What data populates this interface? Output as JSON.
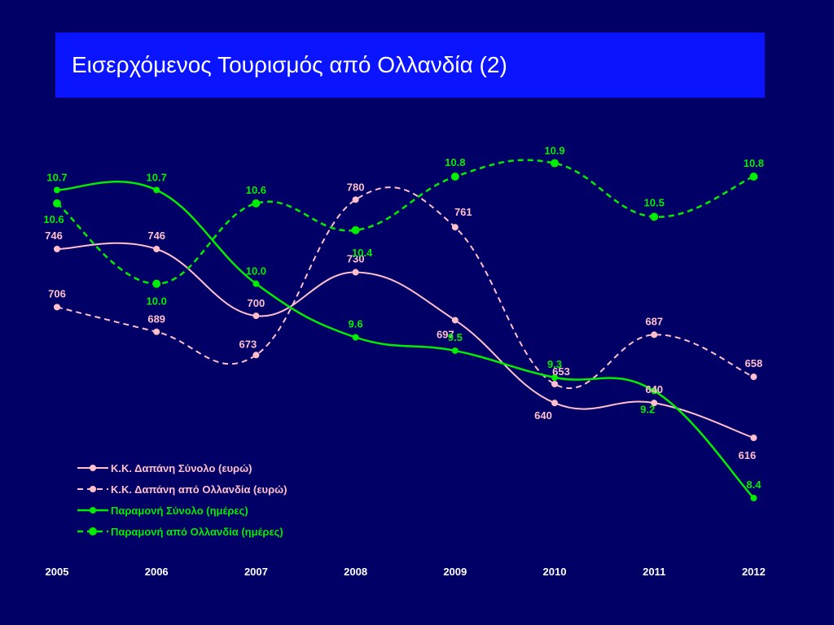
{
  "title": "Εισερχόμενος Τουρισμός από Ολλανδία (2)",
  "chart_data": {
    "type": "line",
    "title": "Εισερχόμενος Τουρισμός από Ολλανδία (2)",
    "x": [
      "2005",
      "2006",
      "2007",
      "2008",
      "2009",
      "2010",
      "2011",
      "2012"
    ],
    "grid": false,
    "legend_position": "bottom-left",
    "series": [
      {
        "name": "Κ.Κ. Δαπάνη Σύνολο (ευρώ)",
        "values": [
          746,
          746,
          700,
          730,
          697,
          640,
          640,
          616
        ],
        "labels": [
          "746",
          "746",
          "700",
          "730",
          "697",
          "640",
          "640",
          "616"
        ],
        "color": "#ffc0cb",
        "dashed": false,
        "axis": "left"
      },
      {
        "name": "Κ.Κ. Δαπάνη από Ολλανδία (ευρώ)",
        "values": [
          706,
          689,
          673,
          780,
          761,
          653,
          687,
          658
        ],
        "labels": [
          "706",
          "689",
          "673",
          "780",
          "761",
          "653",
          "687",
          "658"
        ],
        "color": "#ffc0cb",
        "dashed": true,
        "axis": "left"
      },
      {
        "name": "Παραμονή Σύνολο (ημέρες)",
        "values": [
          10.7,
          10.7,
          10.0,
          9.6,
          9.5,
          9.3,
          9.2,
          8.4
        ],
        "labels": [
          "10.7",
          "10.7",
          "10.0",
          "9.6",
          "9.5",
          "9.3",
          "9.2",
          "8.4"
        ],
        "color": "#00ee00",
        "dashed": false,
        "axis": "right"
      },
      {
        "name": "Παραμονή από Ολλανδία (ημέρες)",
        "values": [
          10.6,
          10.0,
          10.6,
          10.4,
          10.8,
          10.9,
          10.5,
          10.8
        ],
        "labels": [
          "10.6",
          "10.0",
          "10.6",
          "10.4",
          "10.8",
          "10.9",
          "10.5",
          "10.8"
        ],
        "color": "#00ee00",
        "dashed": true,
        "axis": "right"
      }
    ]
  }
}
